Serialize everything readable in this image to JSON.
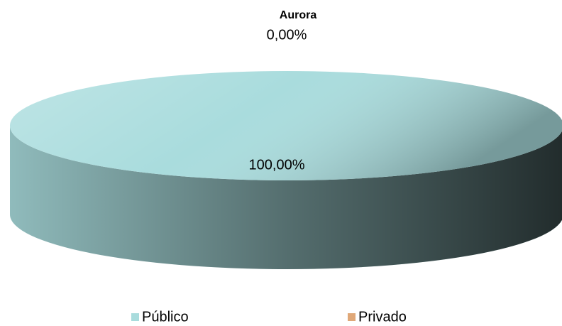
{
  "chart_data": {
    "type": "pie",
    "title": "Aurora",
    "categories": [
      "Público",
      "Privado"
    ],
    "values": [
      100,
      0
    ],
    "value_labels": [
      "100,00%",
      "0,00%"
    ],
    "colors": [
      "#a9dcdd",
      "#e0a878"
    ],
    "legend": "bottom"
  }
}
